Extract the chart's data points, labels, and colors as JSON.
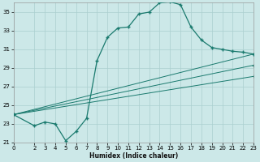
{
  "xlabel": "Humidex (Indice chaleur)",
  "background_color": "#cce8e8",
  "grid_color": "#aacfcf",
  "line_color": "#1a7a6e",
  "xlim": [
    0,
    23
  ],
  "ylim": [
    21,
    36
  ],
  "yticks": [
    21,
    23,
    25,
    27,
    29,
    31,
    33,
    35
  ],
  "xticks": [
    0,
    2,
    3,
    4,
    5,
    6,
    7,
    8,
    9,
    10,
    11,
    12,
    13,
    14,
    15,
    16,
    17,
    18,
    19,
    20,
    21,
    22,
    23
  ],
  "main_x": [
    0,
    2,
    3,
    4,
    5,
    6,
    7,
    8,
    9,
    10,
    11,
    12,
    13,
    14,
    15,
    16,
    17,
    18,
    19,
    20,
    21,
    22,
    23
  ],
  "main_y": [
    24.0,
    22.8,
    23.2,
    23.0,
    21.2,
    22.2,
    23.6,
    29.8,
    32.3,
    33.3,
    33.4,
    34.8,
    35.0,
    36.0,
    36.1,
    35.8,
    33.4,
    32.0,
    31.2,
    31.0,
    30.8,
    30.7,
    30.5
  ],
  "diag_lines": [
    {
      "x": [
        0,
        23
      ],
      "y": [
        24.0,
        30.5
      ]
    },
    {
      "x": [
        0,
        23
      ],
      "y": [
        24.0,
        29.3
      ]
    },
    {
      "x": [
        0,
        23
      ],
      "y": [
        24.0,
        28.1
      ]
    }
  ]
}
